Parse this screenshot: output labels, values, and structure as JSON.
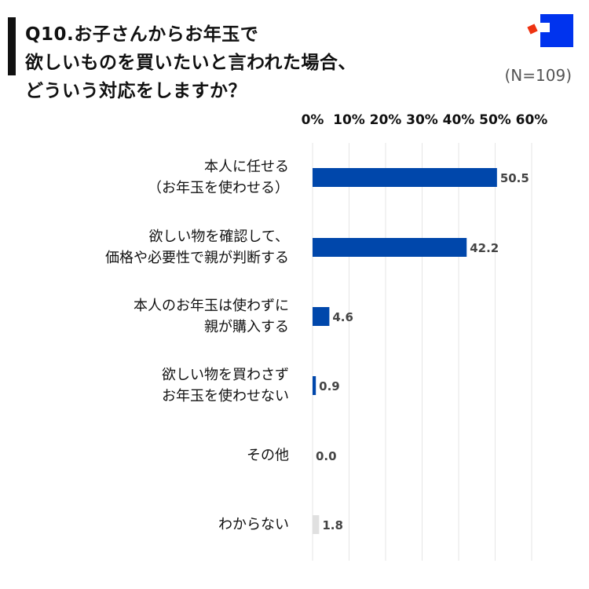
{
  "title_lines": [
    "Q10.お子さんからお年玉で",
    "欲しいものを買いたいと言われた場合、",
    "どういう対応をしますか？"
  ],
  "sample_size": "(N=109)",
  "colors": {
    "bar": "#0047AB",
    "bar_other": "#E0E0E0",
    "grid": "#E6E6E6",
    "logo_blue": "#0033EE",
    "logo_red": "#EE3311"
  },
  "chart_data": {
    "type": "bar",
    "orientation": "horizontal",
    "categories": [
      [
        "本人に任せる",
        "（お年玉を使わせる）"
      ],
      [
        "欲しい物を確認して、",
        "価格や必要性で親が判断する"
      ],
      [
        "本人のお年玉は使わずに",
        "親が購入する"
      ],
      [
        "欲しい物を買わさず",
        "お年玉を使わせない"
      ],
      [
        "その他"
      ],
      [
        "わからない"
      ]
    ],
    "values": [
      50.5,
      42.2,
      4.6,
      0.9,
      0.0,
      1.8
    ],
    "value_labels": [
      "50.5",
      "42.2",
      "4.6",
      "0.9",
      "0.0",
      "1.8"
    ],
    "xlim": [
      0,
      60
    ],
    "ticks": [
      0,
      10,
      20,
      30,
      40,
      50,
      60
    ],
    "tick_labels": [
      "0%",
      "10%",
      "20%",
      "30%",
      "40%",
      "50%",
      "60%"
    ],
    "axis_position": "top",
    "grid": true,
    "unit": "%"
  }
}
